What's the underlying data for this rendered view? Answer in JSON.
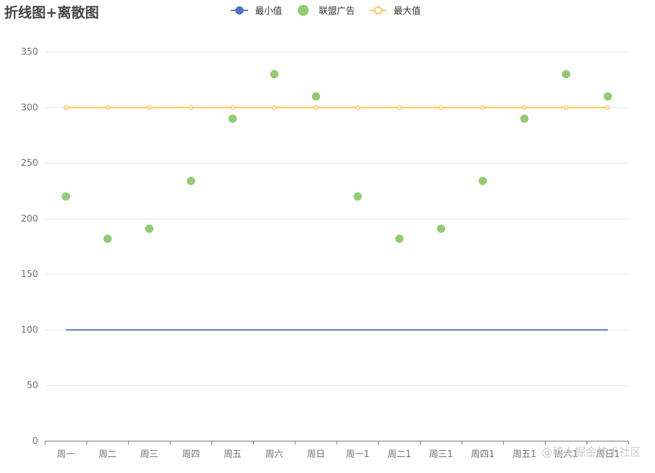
{
  "watermark": "@稀土掘金技术社区",
  "colors": {
    "min_series": "#5470c6",
    "scatter_series": "#91cc75",
    "max_series": "#fac858",
    "grid": "#e0e6f1",
    "axis": "#6e7079"
  },
  "chart_data": {
    "type": "line+scatter",
    "title": "折线图+离散图",
    "xlabel": "",
    "ylabel": "",
    "categories": [
      "周一",
      "周二",
      "周三",
      "周四",
      "周五",
      "周六",
      "周日",
      "周一1",
      "周二1",
      "周三1",
      "周四1",
      "周五1",
      "周六1",
      "周日1"
    ],
    "ylim": [
      0,
      350
    ],
    "yticks": [
      0,
      50,
      100,
      150,
      200,
      250,
      300,
      350
    ],
    "grid": true,
    "legend_position": "top-center",
    "series": [
      {
        "name": "最小值",
        "type": "line",
        "color": "#5470c6",
        "symbol": "none",
        "values": [
          100,
          100,
          100,
          100,
          100,
          100,
          100,
          100,
          100,
          100,
          100,
          100,
          100,
          100
        ]
      },
      {
        "name": "联盟广告",
        "type": "scatter",
        "color": "#91cc75",
        "values": [
          220,
          182,
          191,
          234,
          290,
          330,
          310,
          220,
          182,
          191,
          234,
          290,
          330,
          310
        ]
      },
      {
        "name": "最大值",
        "type": "line",
        "color": "#fac858",
        "symbol": "emptyCircle",
        "values": [
          300,
          300,
          300,
          300,
          300,
          300,
          300,
          300,
          300,
          300,
          300,
          300,
          300,
          300
        ]
      }
    ]
  }
}
